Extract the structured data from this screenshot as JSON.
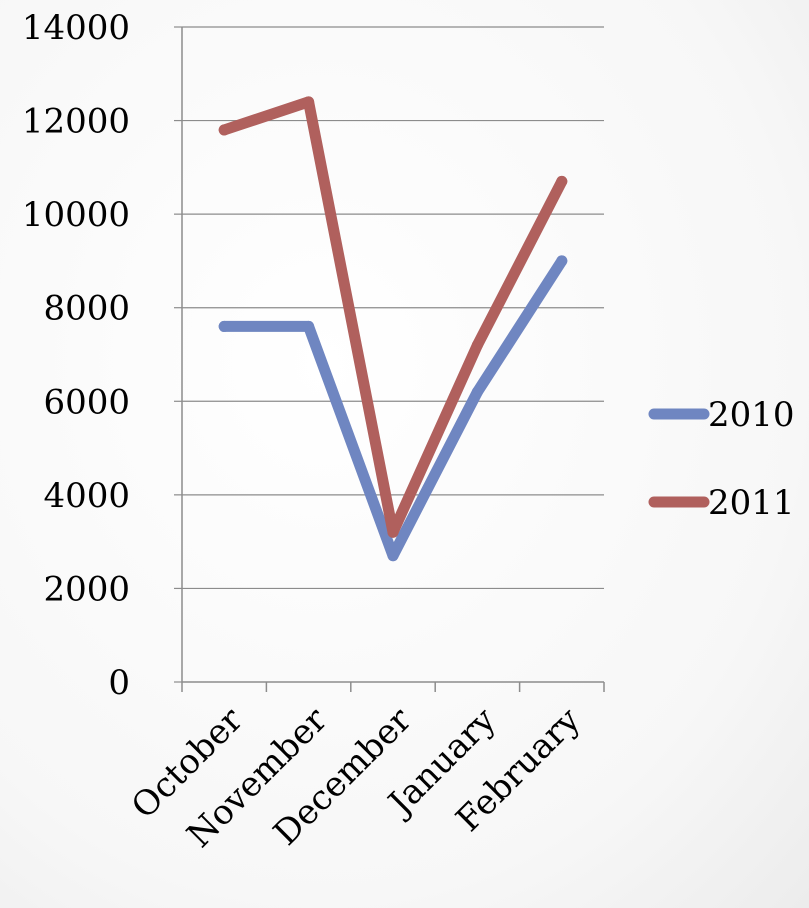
{
  "chart_data": {
    "type": "line",
    "title": "",
    "xlabel": "",
    "ylabel": "",
    "categories": [
      "October",
      "November",
      "December",
      "January",
      "February"
    ],
    "series": [
      {
        "name": "2010",
        "color": "#6F86C1",
        "values": [
          7600,
          7600,
          2700,
          6200,
          9000
        ]
      },
      {
        "name": "2011",
        "color": "#B0605D",
        "values": [
          11800,
          12400,
          3200,
          7200,
          10700
        ]
      }
    ],
    "ylim": [
      0,
      14000
    ],
    "y_ticks": [
      0,
      2000,
      4000,
      6000,
      8000,
      10000,
      12000,
      14000
    ],
    "grid": true,
    "legend_position": "right"
  }
}
